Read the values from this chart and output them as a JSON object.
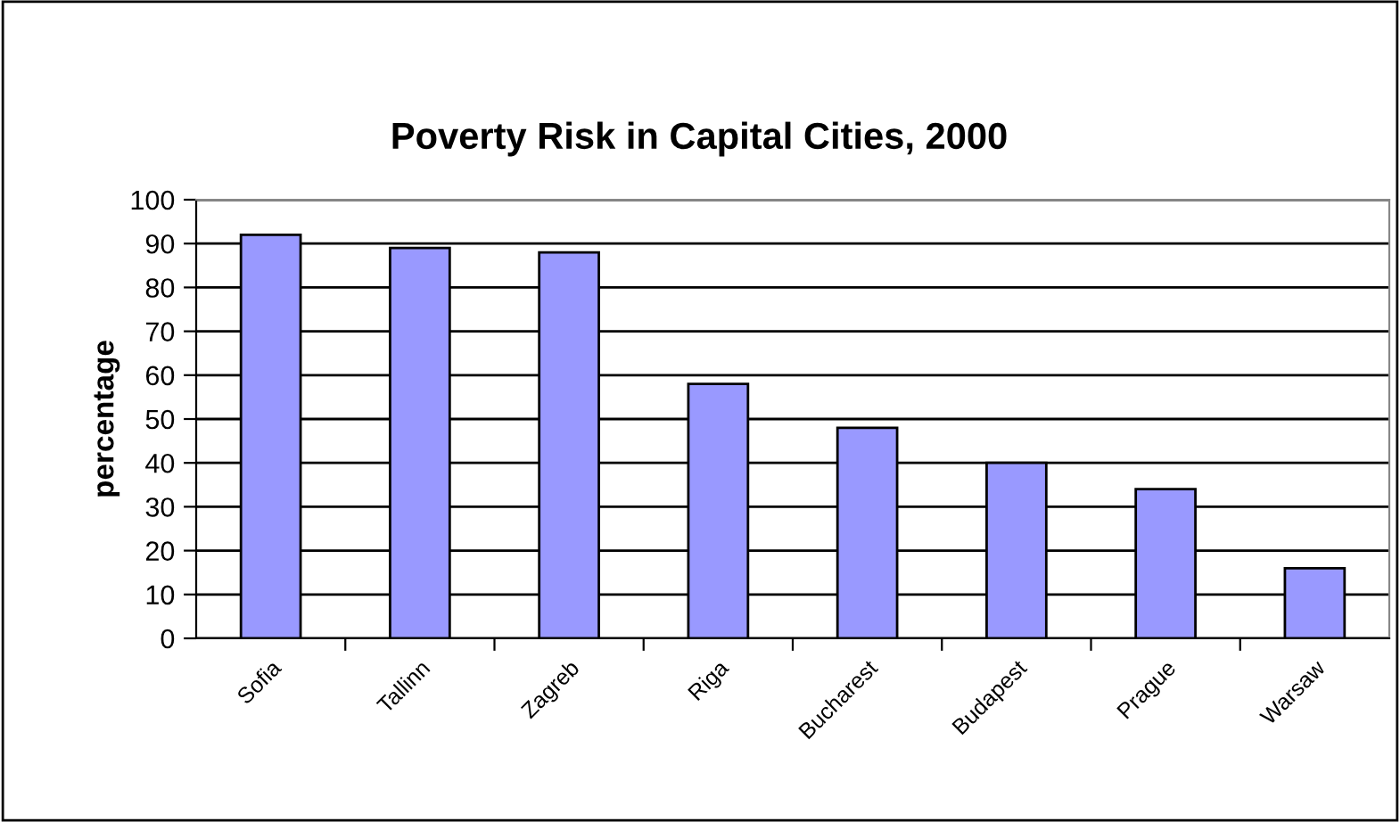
{
  "chart_data": {
    "type": "bar",
    "title": "Poverty Risk in Capital Cities, 2000",
    "ylabel": "percentage",
    "categories": [
      "Sofia",
      "Tallinn",
      "Zagreb",
      "Riga",
      "Bucharest",
      "Budapest",
      "Prague",
      "Warsaw"
    ],
    "values": [
      92,
      89,
      88,
      58,
      48,
      40,
      34,
      16
    ],
    "color": "#9999ff",
    "ylim": [
      0,
      100
    ],
    "yticks": [
      0,
      10,
      20,
      30,
      40,
      50,
      60,
      70,
      80,
      90,
      100
    ],
    "grid": "y"
  }
}
